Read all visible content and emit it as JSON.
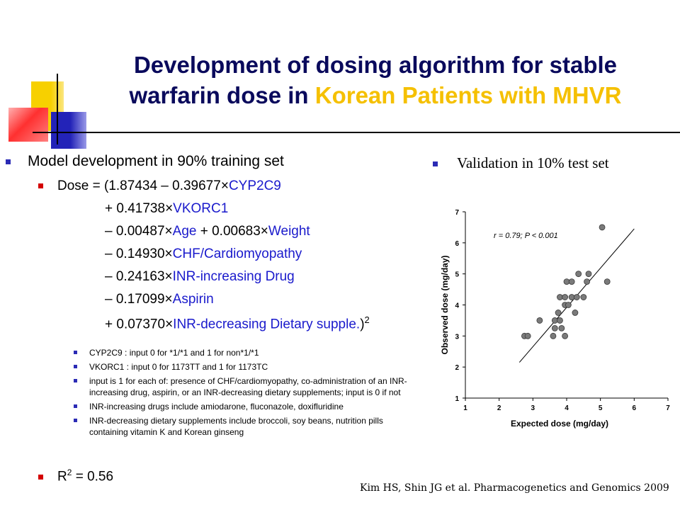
{
  "slide": {
    "title_line1": "Development of dosing algorithm for stable",
    "title_line2_plain": "warfarin dose in ",
    "title_line2_highlight": "Korean Patients with MHVR"
  },
  "model": {
    "heading": "Model development in 90% training set",
    "dose_prefix": "Dose = (1.87434 – 0.39677",
    "dose_var1": "CYP2C9",
    "terms": [
      {
        "coef": "+ 0.41738",
        "var": "VKORC1"
      },
      {
        "coef": "– 0.00487",
        "var": "Age"
      },
      {
        "coef": "– 0.14930",
        "var": "CHF/Cardiomyopathy"
      },
      {
        "coef": "– 0.24163",
        "var": "INR-increasing Drug"
      },
      {
        "coef": "– 0.17099",
        "var": "Aspirin"
      },
      {
        "coef": "+ 0.07370",
        "var": "INR-decreasing Dietary supple."
      }
    ],
    "weight_coef": "+ 0.00683",
    "weight_var": "Weight",
    "times": "×",
    "close": ")",
    "square": "2",
    "notes": [
      "CYP2C9 : input 0 for *1/*1 and 1 for non*1/*1",
      "VKORC1 : input 0 for 1173TT and 1 for 1173TC",
      "input is 1 for each of: presence of CHF/cardiomyopathy, co-administration of an INR-increasing drug, aspirin, or an INR-decreasing dietary supplements; input is 0 if not",
      "INR-increasing drugs include amiodarone, fluconazole, doxifluridine",
      "INR-decreasing dietary supplements include broccoli, soy beans, nutrition pills containing vitamin K and Korean ginseng"
    ],
    "r2_prefix": "R",
    "r2_sup": "2",
    "r2_value": " = 0.56"
  },
  "validation": {
    "label": "Validation in 10% test set"
  },
  "citation": "Kim HS, Shin JG et al. Pharmacogenetics and Genomics 2009",
  "chart_data": {
    "type": "scatter",
    "xlabel": "Expected dose (mg/day)",
    "ylabel": "Observed dose (mg/day)",
    "xlim": [
      1,
      7
    ],
    "ylim": [
      1,
      7
    ],
    "xticks": [
      1,
      2,
      3,
      4,
      5,
      6,
      7
    ],
    "yticks": [
      1,
      2,
      3,
      4,
      5,
      6,
      7
    ],
    "annotation": "r = 0.79;  P < 0.001",
    "fit_line": [
      [
        2.6,
        2.15
      ],
      [
        6.0,
        6.45
      ]
    ],
    "points": [
      [
        2.75,
        3.0
      ],
      [
        2.85,
        3.0
      ],
      [
        3.2,
        3.5
      ],
      [
        3.6,
        3.0
      ],
      [
        3.65,
        3.25
      ],
      [
        3.65,
        3.5
      ],
      [
        3.75,
        3.75
      ],
      [
        3.8,
        3.5
      ],
      [
        3.85,
        3.25
      ],
      [
        3.95,
        3.0
      ],
      [
        3.8,
        4.25
      ],
      [
        3.95,
        4.25
      ],
      [
        3.95,
        4.0
      ],
      [
        4.05,
        4.0
      ],
      [
        4.0,
        4.75
      ],
      [
        4.15,
        4.75
      ],
      [
        4.15,
        4.25
      ],
      [
        4.25,
        3.75
      ],
      [
        4.3,
        4.25
      ],
      [
        4.35,
        5.0
      ],
      [
        4.5,
        4.25
      ],
      [
        4.6,
        4.75
      ],
      [
        4.65,
        5.0
      ],
      [
        5.05,
        6.5
      ],
      [
        5.2,
        4.75
      ]
    ]
  },
  "colors": {
    "title": "#0a0a5c",
    "highlight": "#f5c000",
    "variable_blue": "#1a1acc",
    "bullet_blue": "#2b2bb5",
    "bullet_red": "#d40000"
  }
}
